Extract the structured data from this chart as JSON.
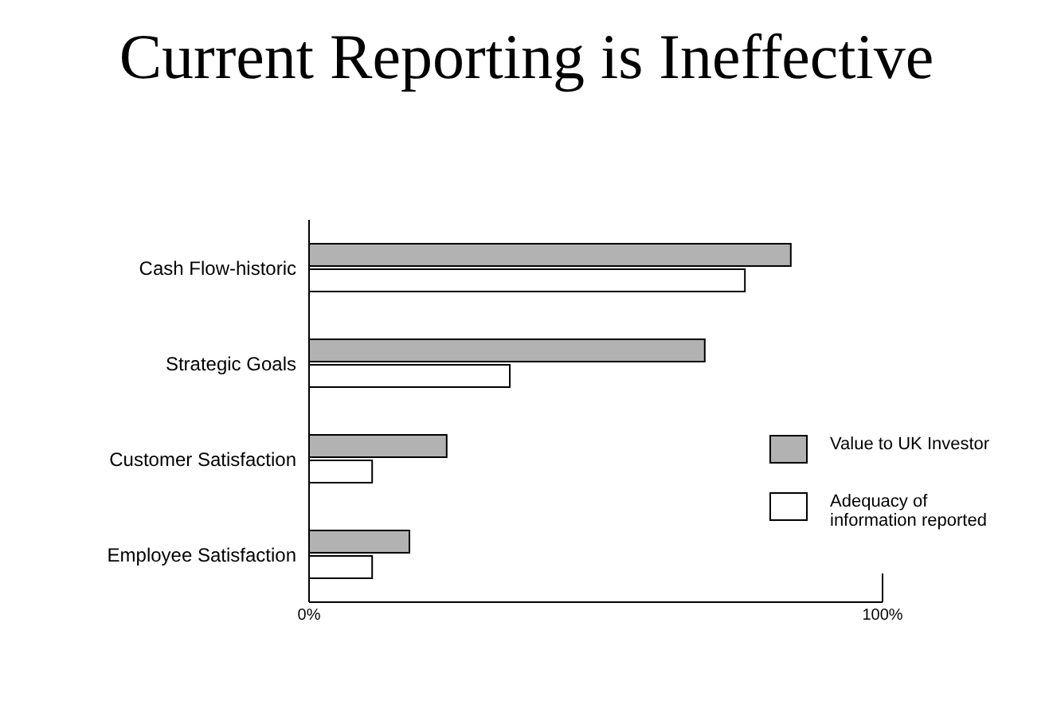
{
  "chart_data": {
    "type": "bar",
    "orientation": "horizontal",
    "title": "Current Reporting is Ineffective",
    "categories": [
      "Cash Flow-historic",
      "Strategic Goals",
      "Customer Satisfaction",
      "Employee Satisfaction"
    ],
    "series": [
      {
        "name": "Value to UK Investor",
        "color": "#b2b2b2",
        "values": [
          84,
          69,
          24,
          17.5
        ]
      },
      {
        "name": "Adequacy of information reported",
        "color": "#ffffff",
        "values": [
          76,
          35,
          11,
          11
        ]
      }
    ],
    "xlim": [
      0,
      100
    ],
    "xticks": [
      {
        "value": 0,
        "label": "0%"
      },
      {
        "value": 100,
        "label": "100%"
      }
    ],
    "grid": false,
    "legend": "right"
  }
}
